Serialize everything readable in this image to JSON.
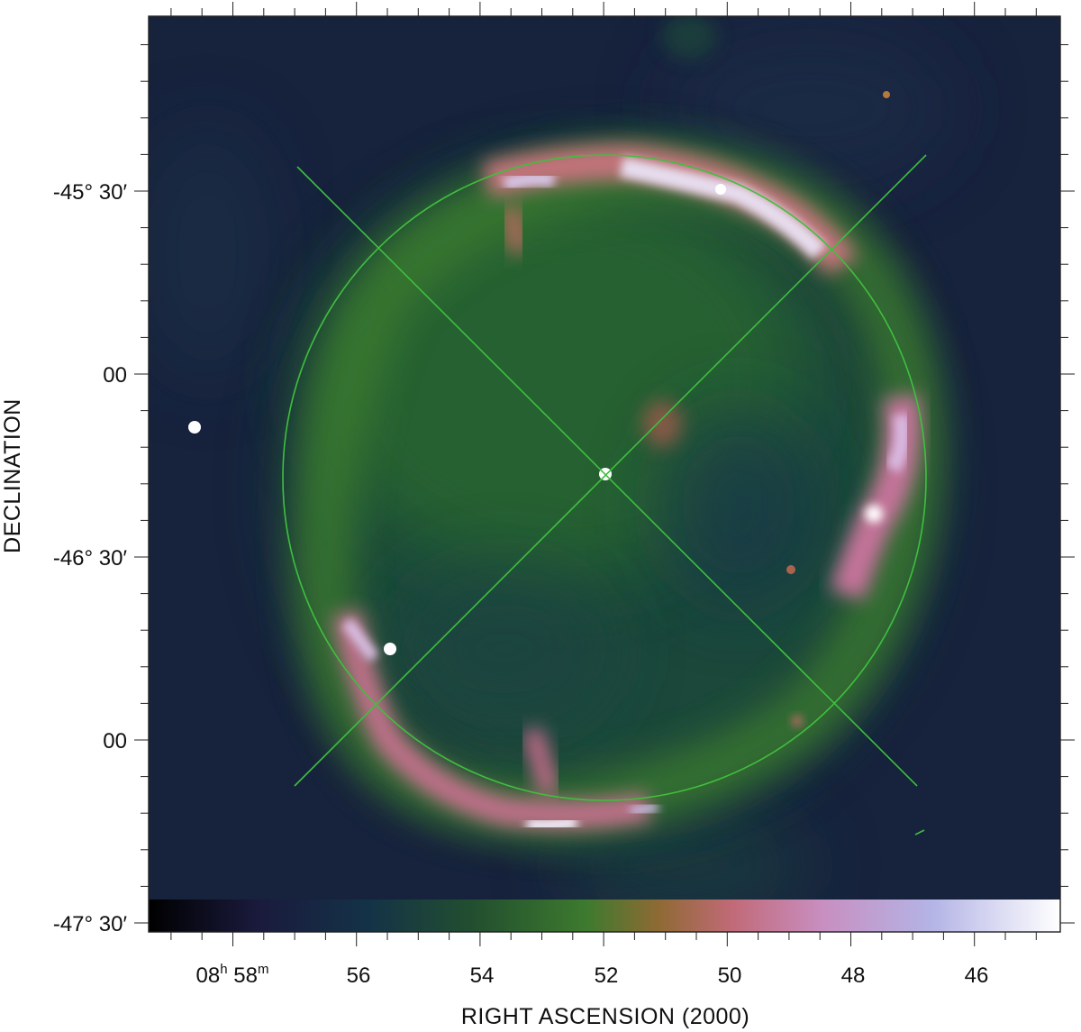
{
  "figure": {
    "xlabel": "RIGHT ASCENSION  (2000)",
    "ylabel": "DECLINATION",
    "colormap": [
      "#000000",
      "#1a1a3d",
      "#143247",
      "#23502f",
      "#3d7a2e",
      "#8f6a34",
      "#c16a78",
      "#c88fc1",
      "#b4b4e6",
      "#ffffff"
    ],
    "overlay_color": "#3fbf3f",
    "dec_ticks": [
      {
        "deg": "-45°",
        "min": "30′"
      },
      {
        "deg": "",
        "min": "00"
      },
      {
        "deg": "-46°",
        "min": "30′"
      },
      {
        "deg": "",
        "min": "00"
      },
      {
        "deg": "-47°",
        "min": "30′"
      }
    ],
    "ra_ticks": [
      {
        "h": "08",
        "h_unit": "h",
        "m": "58",
        "m_unit": "m"
      },
      {
        "value": "56"
      },
      {
        "value": "54"
      },
      {
        "value": "52"
      },
      {
        "value": "50"
      },
      {
        "value": "48"
      },
      {
        "value": "46"
      }
    ]
  }
}
